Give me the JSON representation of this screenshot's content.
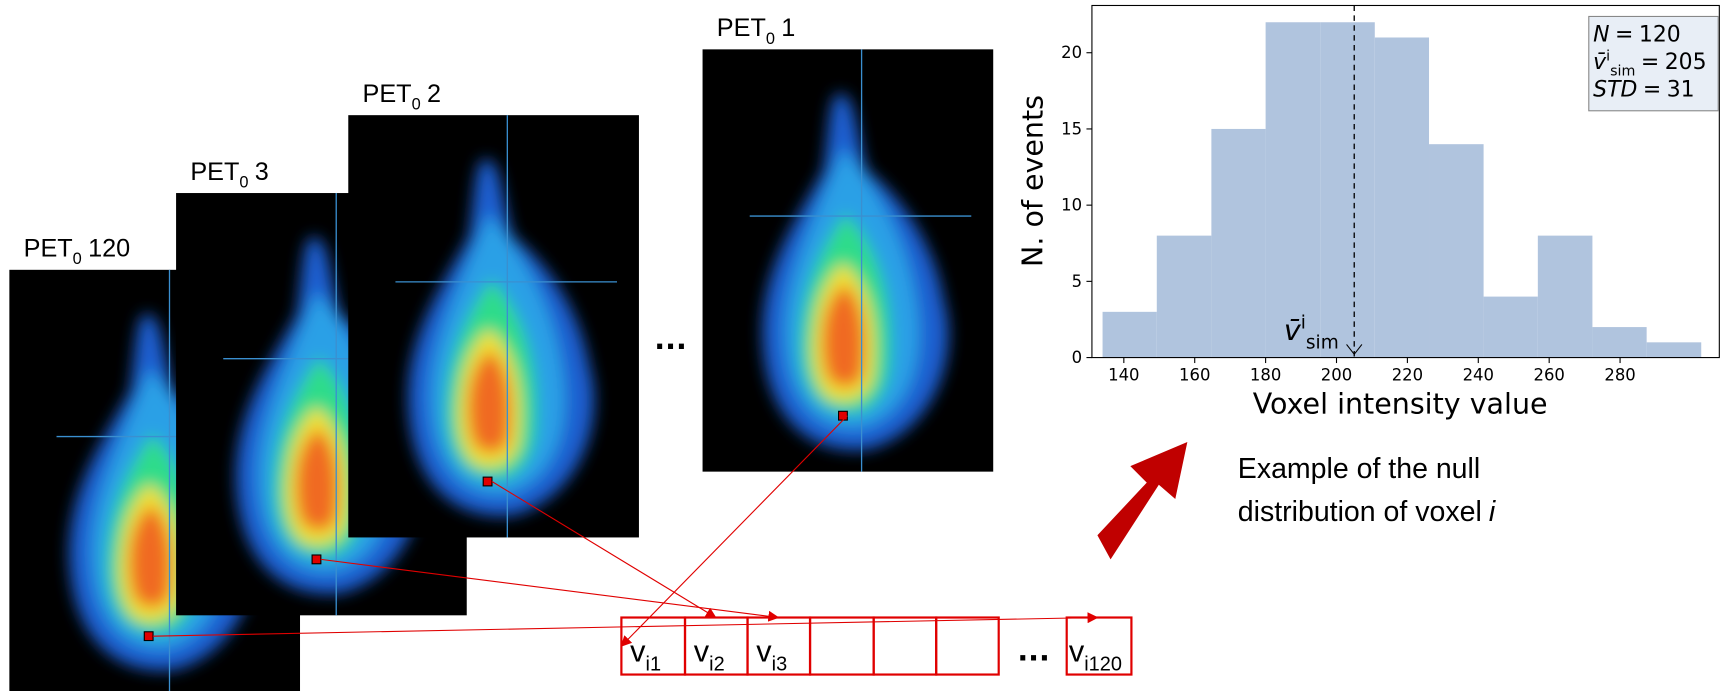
{
  "stack": [
    {
      "name": "PET",
      "sub": "0",
      "index": "1"
    },
    {
      "name": "PET",
      "sub": "0",
      "index": "2"
    },
    {
      "name": "PET",
      "sub": "0",
      "index": "3"
    },
    {
      "name": "PET",
      "sub": "0",
      "index": "120"
    }
  ],
  "ellipsis": "...",
  "vector": [
    {
      "name": "v",
      "sub": "i1"
    },
    {
      "name": "v",
      "sub": "i2"
    },
    {
      "name": "v",
      "sub": "i3"
    },
    {
      "name": "v",
      "sub": "i120"
    }
  ],
  "caption": {
    "lines": [
      "Example of the null",
      "distribution of voxel"
    ],
    "var": "i"
  },
  "chart_data": {
    "type": "histogram",
    "xlabel": "Voxel intensity value",
    "ylabel": "N. of events",
    "bins": [
      134,
      149.3,
      164.7,
      180,
      195.4,
      210.8,
      226.1,
      241.5,
      256.8,
      272.2,
      287.5,
      302.9
    ],
    "counts": [
      3,
      8,
      15,
      22,
      22,
      21,
      14,
      4,
      8,
      2,
      1
    ],
    "color": "#b0c4de",
    "xlim": [
      131,
      308
    ],
    "ylim": [
      0,
      23.1
    ],
    "xticks": [
      140,
      160,
      180,
      200,
      220,
      240,
      260,
      280
    ],
    "yticks": [
      0,
      5,
      10,
      15,
      20
    ],
    "stats": [
      {
        "symbol": "N",
        "op": "=",
        "value": 120
      },
      {
        "symbol": "v̄",
        "sup": "i",
        "sub": "sim",
        "op": "=",
        "value": 205
      },
      {
        "symbol": "STD",
        "op": "=",
        "value": 31
      }
    ]
  }
}
